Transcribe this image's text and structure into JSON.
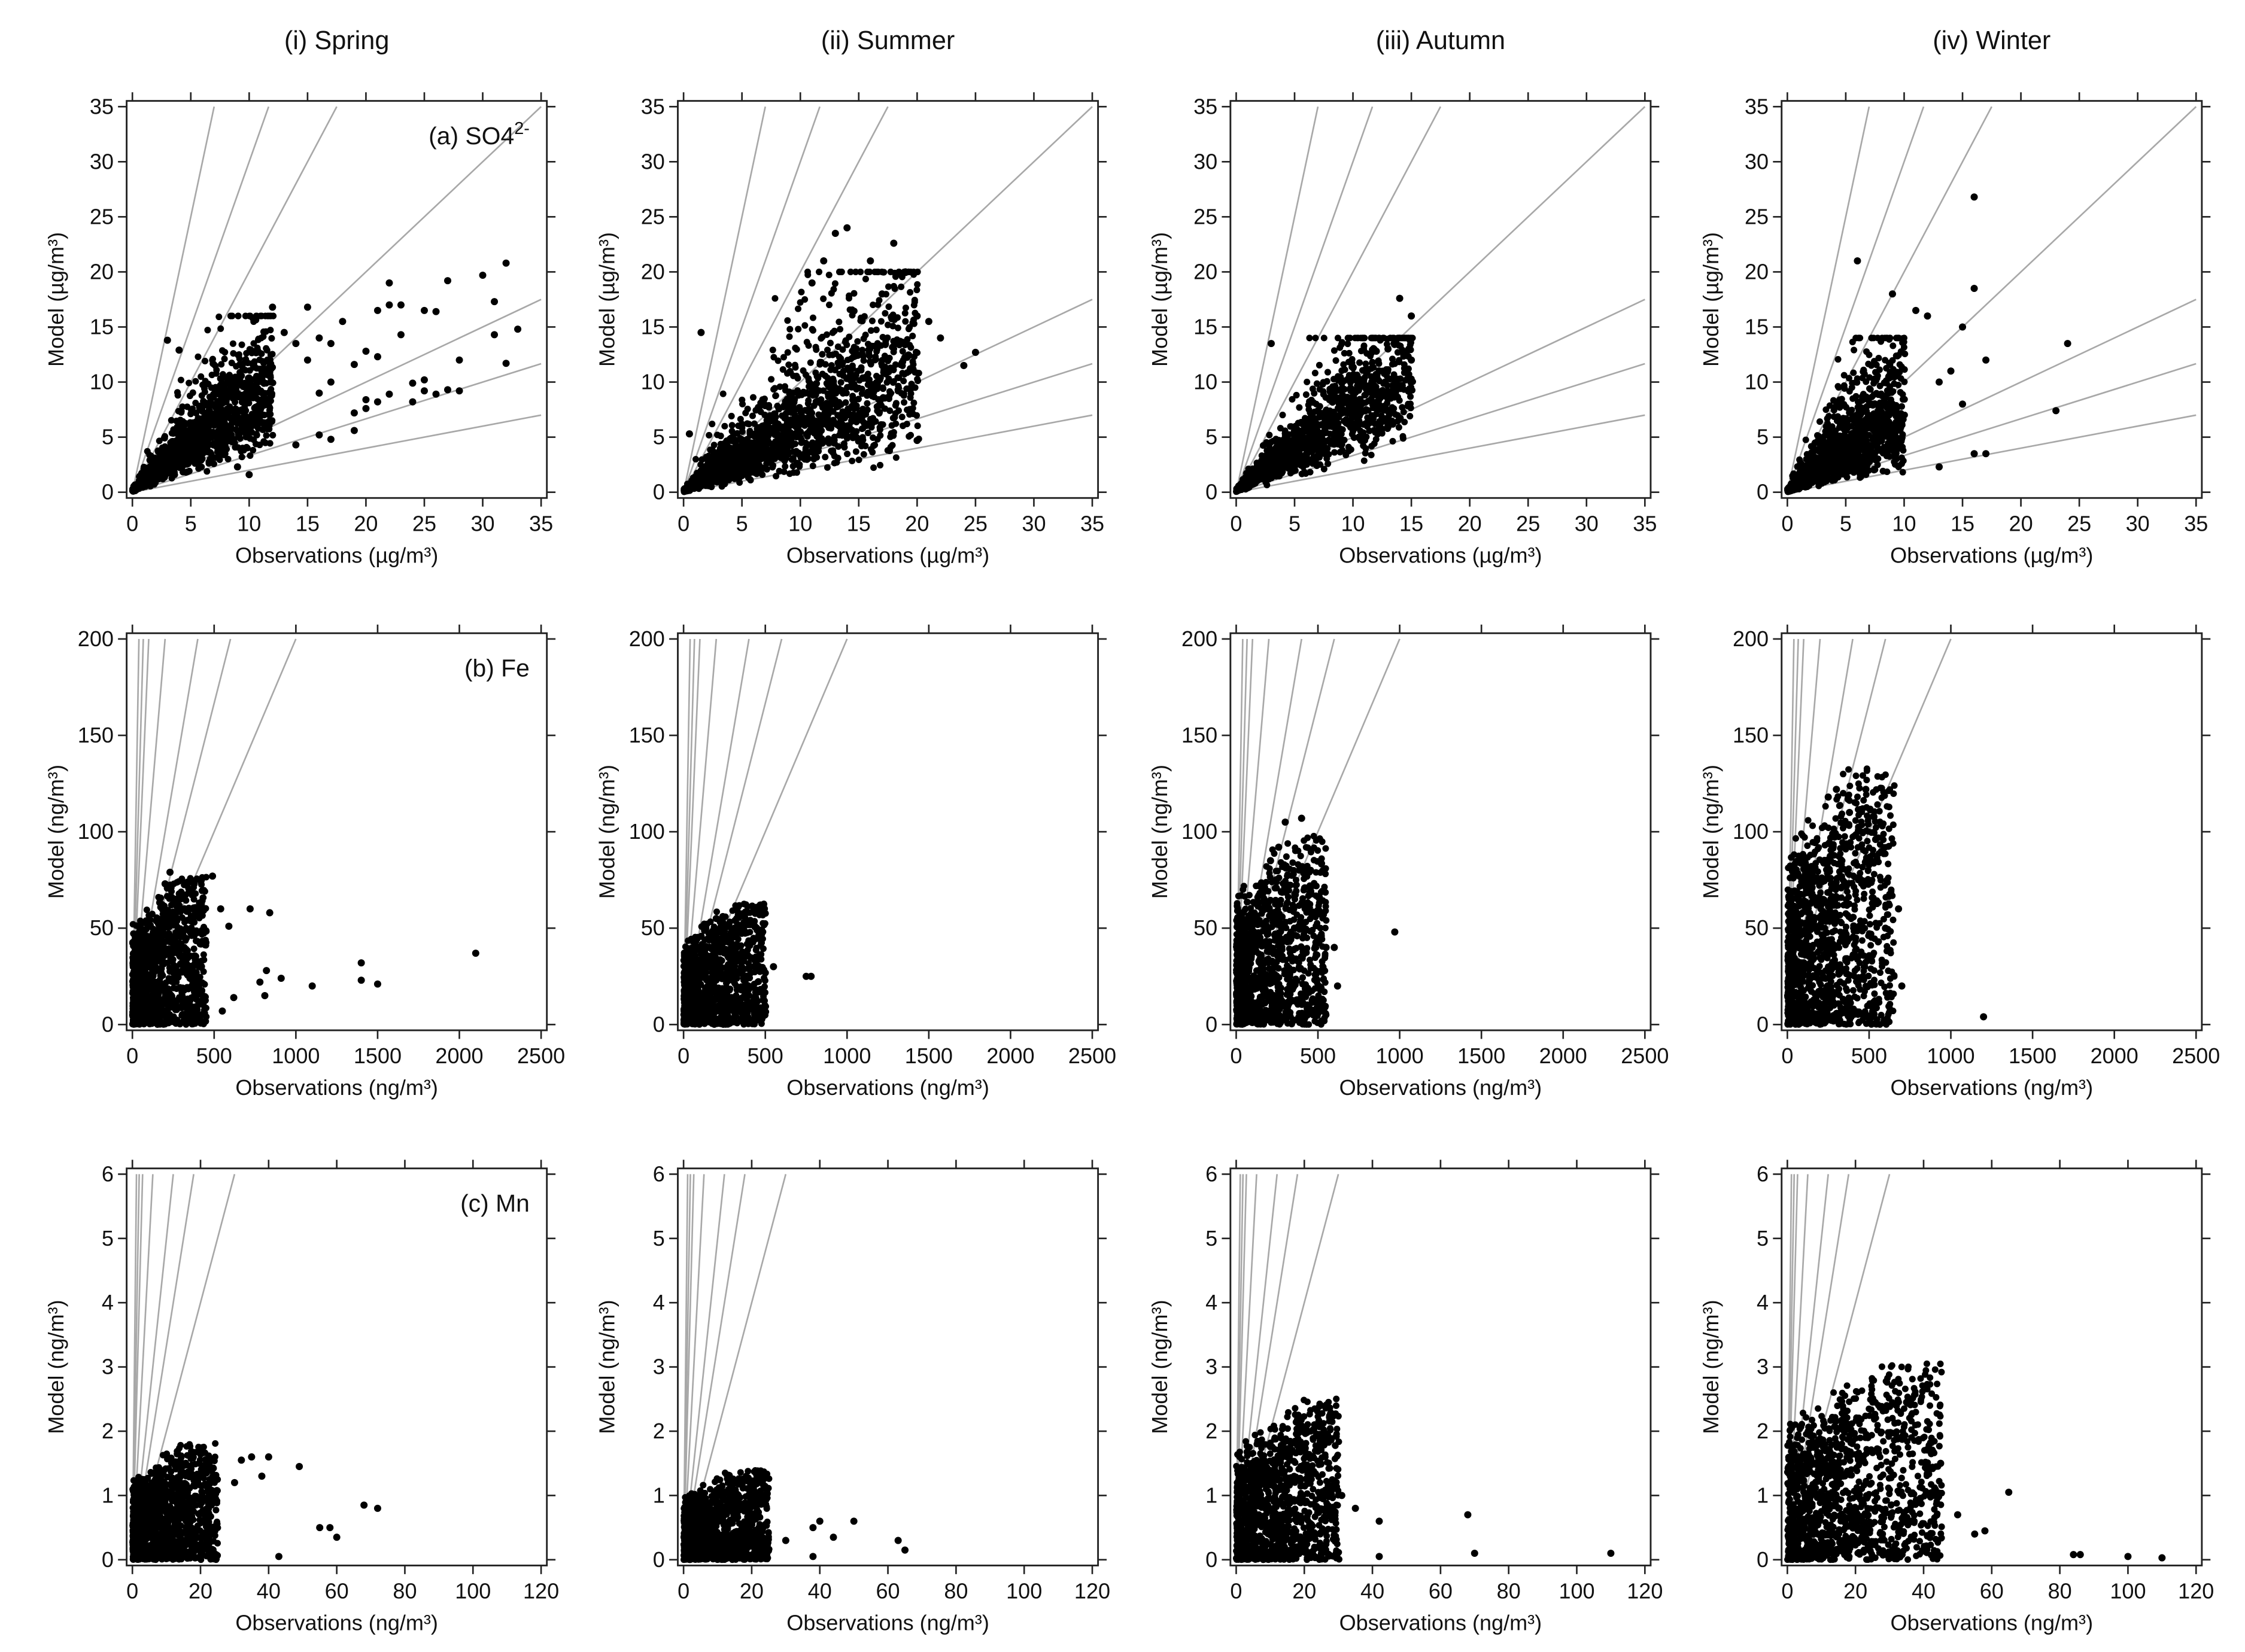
{
  "chart_data": {
    "type": "scatter",
    "columns": [
      "(i) Spring",
      "(ii) Summer",
      "(iii) Autumn",
      "(iv) Winter"
    ],
    "reference_line_ratios": [
      5,
      3,
      2,
      1,
      0.5,
      0.3333,
      0.2
    ],
    "rows": [
      {
        "species_label": "(a) SO4",
        "species_charge": "2-",
        "xlabel": "Observations (µg/m³)",
        "ylabel": "Model (µg/m³)",
        "xlim": [
          0,
          35
        ],
        "ylim": [
          0,
          35
        ],
        "xticks": [
          0,
          5,
          10,
          15,
          20,
          25,
          30,
          35
        ],
        "yticks": [
          0,
          5,
          10,
          15,
          20,
          25,
          30,
          35
        ],
        "panels": [
          {
            "cloud": {
              "mode": "ratio",
              "n": 1600,
              "xmax": 12,
              "xpow": 1.5,
              "ratio": 0.85,
              "spread": 0.35,
              "ycap": 16
            },
            "outliers": [
              [
                22,
                17
              ],
              [
                21,
                16.5
              ],
              [
                22,
                19
              ],
              [
                23,
                17
              ],
              [
                23,
                14.3
              ],
              [
                25,
                16.5
              ],
              [
                26,
                16.4
              ],
              [
                27,
                19.2
              ],
              [
                30,
                19.7
              ],
              [
                31,
                17.3
              ],
              [
                31,
                14.3
              ],
              [
                32,
                20.8
              ],
              [
                32,
                11.7
              ],
              [
                33,
                14.8
              ],
              [
                28,
                12
              ],
              [
                28,
                9.2
              ],
              [
                27,
                9.3
              ],
              [
                26,
                8.9
              ],
              [
                25,
                9.2
              ],
              [
                25,
                10.2
              ],
              [
                24,
                9.9
              ],
              [
                24,
                8.2
              ],
              [
                22,
                8.9
              ],
              [
                21,
                8.2
              ],
              [
                20,
                8.4
              ],
              [
                20,
                7.6
              ],
              [
                19,
                5.6
              ],
              [
                19,
                7.2
              ],
              [
                19,
                11.6
              ],
              [
                20,
                12.8
              ],
              [
                21,
                12.3
              ],
              [
                18,
                15.5
              ],
              [
                15,
                16.8
              ],
              [
                12,
                16.8
              ],
              [
                10,
                1.6
              ],
              [
                3,
                13.8
              ],
              [
                4,
                12.9
              ],
              [
                14,
                4.3
              ],
              [
                16,
                5.2
              ],
              [
                17,
                4.8
              ],
              [
                9,
                2.3
              ],
              [
                14,
                13.5
              ],
              [
                16,
                14
              ],
              [
                17,
                13.5
              ],
              [
                13,
                14.5
              ],
              [
                15,
                12
              ],
              [
                16,
                9
              ],
              [
                17,
                10
              ]
            ]
          },
          {
            "cloud": {
              "mode": "ratio",
              "n": 1800,
              "xmax": 20,
              "xpow": 1.4,
              "ratio": 0.6,
              "spread": 0.45,
              "ycap": 20
            },
            "outliers": [
              [
                25,
                12.7
              ],
              [
                24,
                11.5
              ],
              [
                20,
                4.7
              ],
              [
                18,
                22.6
              ],
              [
                14,
                24
              ],
              [
                13,
                23.5
              ],
              [
                0.5,
                5.3
              ],
              [
                19,
                20
              ],
              [
                16,
                21
              ],
              [
                12,
                21
              ],
              [
                11,
                19
              ],
              [
                21,
                15.5
              ],
              [
                22,
                14
              ],
              [
                20,
                16
              ],
              [
                17,
                18
              ],
              [
                1.5,
                14.5
              ]
            ]
          },
          {
            "cloud": {
              "mode": "ratio",
              "n": 1500,
              "xmax": 15,
              "xpow": 1.5,
              "ratio": 0.75,
              "spread": 0.35,
              "ycap": 14
            },
            "outliers": [
              [
                14,
                17.6
              ],
              [
                15,
                16
              ],
              [
                3,
                13.5
              ],
              [
                13,
                13
              ],
              [
                12,
                12.8
              ],
              [
                15,
                12
              ],
              [
                15,
                10
              ]
            ]
          },
          {
            "cloud": {
              "mode": "ratio",
              "n": 1400,
              "xmax": 10,
              "xpow": 1.4,
              "ratio": 0.75,
              "spread": 0.5,
              "ycap": 14
            },
            "outliers": [
              [
                16,
                26.8
              ],
              [
                24,
                13.5
              ],
              [
                23,
                7.4
              ],
              [
                16,
                18.5
              ],
              [
                16,
                3.5
              ],
              [
                17,
                3.5
              ],
              [
                13,
                2.3
              ],
              [
                17,
                12
              ],
              [
                15,
                15
              ],
              [
                12,
                16
              ],
              [
                11,
                16.5
              ],
              [
                14,
                11
              ],
              [
                13,
                10
              ],
              [
                15,
                8
              ],
              [
                9,
                18
              ],
              [
                6,
                21
              ]
            ]
          }
        ]
      },
      {
        "species_label": "(b) Fe",
        "species_charge": "",
        "xlabel": "Observations (ng/m³)",
        "ylabel": "Model (ng/m³)",
        "xlim": [
          0,
          2500
        ],
        "ylim": [
          0,
          200
        ],
        "xticks": [
          0,
          500,
          1000,
          1500,
          2000,
          2500
        ],
        "yticks": [
          0,
          50,
          100,
          150,
          200
        ],
        "panels": [
          {
            "cloud": {
              "mode": "indep",
              "n": 1200,
              "xmax": 450,
              "xpow": 1.6,
              "ymax": 55,
              "ypow": 1.3
            },
            "outliers": [
              [
                2100,
                37
              ],
              [
                1400,
                32
              ],
              [
                1400,
                23
              ],
              [
                1500,
                21
              ],
              [
                1100,
                20
              ],
              [
                910,
                24
              ],
              [
                820,
                28
              ],
              [
                810,
                15
              ],
              [
                780,
                22
              ],
              [
                720,
                60
              ],
              [
                840,
                58
              ],
              [
                590,
                51
              ],
              [
                620,
                14
              ],
              [
                550,
                7
              ],
              [
                490,
                77
              ],
              [
                420,
                60
              ],
              [
                540,
                60
              ],
              [
                230,
                79
              ],
              [
                200,
                73
              ],
              [
                240,
                66
              ]
            ]
          },
          {
            "cloud": {
              "mode": "indep",
              "n": 1200,
              "xmax": 500,
              "xpow": 1.6,
              "ymax": 45,
              "ypow": 1.2
            },
            "outliers": [
              [
                750,
                25
              ],
              [
                780,
                25
              ],
              [
                550,
                30
              ],
              [
                240,
                56
              ],
              [
                200,
                55
              ]
            ]
          },
          {
            "cloud": {
              "mode": "indep",
              "n": 1200,
              "xmax": 550,
              "xpow": 1.7,
              "ymax": 70,
              "ypow": 1.3
            },
            "outliers": [
              [
                970,
                48
              ],
              [
                400,
                107
              ],
              [
                300,
                105
              ],
              [
                620,
                20
              ],
              [
                550,
                40
              ],
              [
                600,
                40
              ],
              [
                260,
                92
              ],
              [
                210,
                85
              ]
            ]
          },
          {
            "cloud": {
              "mode": "indep",
              "n": 1300,
              "xmax": 650,
              "xpow": 1.6,
              "ymax": 95,
              "ypow": 1.3
            },
            "outliers": [
              [
                1200,
                4
              ],
              [
                480,
                122
              ],
              [
                300,
                122
              ],
              [
                700,
                20
              ],
              [
                600,
                50
              ],
              [
                680,
                60
              ],
              [
                540,
                96
              ],
              [
                380,
                110
              ],
              [
                250,
                118
              ]
            ]
          }
        ]
      },
      {
        "species_label": "(c) Mn",
        "species_charge": "",
        "xlabel": "Observations (ng/m³)",
        "ylabel": "Model (ng/m³)",
        "xlim": [
          0,
          120
        ],
        "ylim": [
          0,
          6
        ],
        "xticks": [
          0,
          20,
          40,
          60,
          80,
          100,
          120
        ],
        "yticks": [
          0,
          1,
          2,
          3,
          4,
          5,
          6
        ],
        "panels": [
          {
            "cloud": {
              "mode": "indep",
              "n": 1200,
              "xmax": 25,
              "xpow": 1.5,
              "ymax": 1.3,
              "ypow": 1.3
            },
            "outliers": [
              [
                72,
                0.8
              ],
              [
                68,
                0.85
              ],
              [
                60,
                0.35
              ],
              [
                58,
                0.5
              ],
              [
                55,
                0.5
              ],
              [
                49,
                1.45
              ],
              [
                43,
                0.05
              ],
              [
                40,
                1.6
              ],
              [
                35,
                1.6
              ],
              [
                32,
                1.55
              ],
              [
                38,
                1.3
              ],
              [
                30,
                1.2
              ]
            ]
          },
          {
            "cloud": {
              "mode": "indep",
              "n": 1200,
              "xmax": 25,
              "xpow": 1.5,
              "ymax": 1.0,
              "ypow": 1.3
            },
            "outliers": [
              [
                65,
                0.15
              ],
              [
                63,
                0.3
              ],
              [
                50,
                0.6
              ],
              [
                44,
                0.35
              ],
              [
                40,
                0.6
              ],
              [
                38,
                0.05
              ],
              [
                38,
                0.5
              ],
              [
                30,
                0.3
              ],
              [
                22,
                1.25
              ],
              [
                15,
                1.2
              ]
            ]
          },
          {
            "cloud": {
              "mode": "indep",
              "n": 1200,
              "xmax": 30,
              "xpow": 1.5,
              "ymax": 1.8,
              "ypow": 1.3
            },
            "outliers": [
              [
                110,
                0.1
              ],
              [
                70,
                0.1
              ],
              [
                68,
                0.7
              ],
              [
                42,
                0.05
              ],
              [
                42,
                0.6
              ],
              [
                23,
                2.1
              ],
              [
                18,
                2.0
              ],
              [
                31,
                1.0
              ],
              [
                35,
                0.8
              ]
            ]
          },
          {
            "cloud": {
              "mode": "indep",
              "n": 1300,
              "xmax": 45,
              "xpow": 1.5,
              "ymax": 2.2,
              "ypow": 1.3
            },
            "outliers": [
              [
                110,
                0.03
              ],
              [
                100,
                0.05
              ],
              [
                86,
                0.08
              ],
              [
                84,
                0.08
              ],
              [
                65,
                1.05
              ],
              [
                58,
                0.45
              ],
              [
                55,
                0.4
              ],
              [
                35,
                2.45
              ],
              [
                32,
                2.4
              ],
              [
                45,
                1.5
              ],
              [
                50,
                0.7
              ]
            ]
          }
        ]
      }
    ]
  }
}
